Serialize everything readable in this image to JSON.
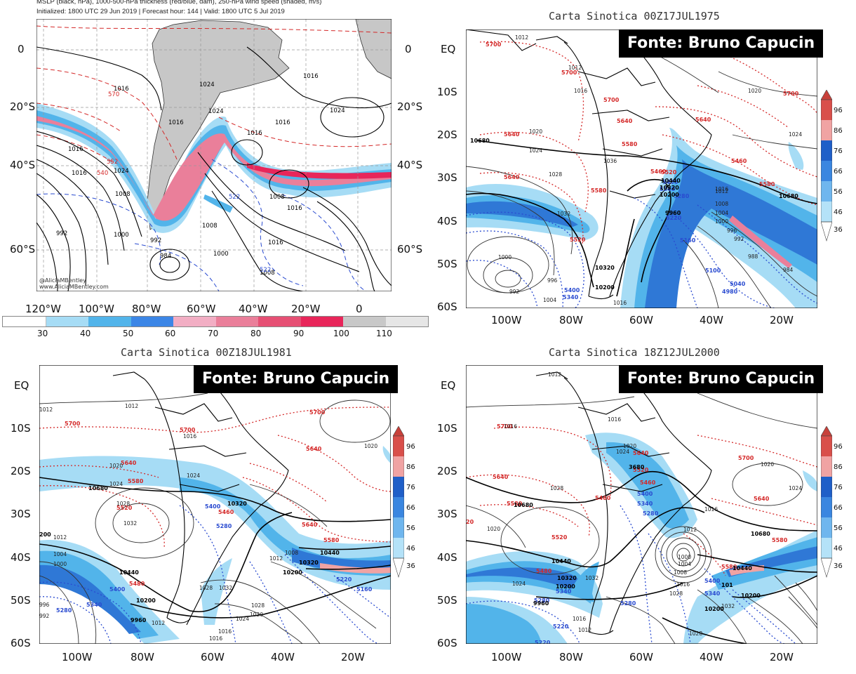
{
  "panel1": {
    "header": [
      "MSLP (black, hPa), 1000-500-hPa thickness (red/blue, dam), 250-hPa wind speed (shaded, m/s)",
      "Initialized: 1800 UTC 29 Jun 2019 | Forecast hour: 144 | Valid: 1800 UTC 5 Jul 2019"
    ],
    "y_ticks_left": [
      "0",
      "20°S",
      "40°S",
      "60°S"
    ],
    "y_ticks_right": [
      "0",
      "20°S",
      "40°S",
      "60°S"
    ],
    "x_ticks": [
      "120°W",
      "100°W",
      "80°W",
      "60°W",
      "40°W",
      "20°W",
      "0"
    ],
    "watermark": [
      "@AliciaMBentley",
      "www.AliciaMBentley.com"
    ],
    "colorbar": {
      "labels": [
        "30",
        "40",
        "50",
        "60",
        "70",
        "80",
        "90",
        "100",
        "110"
      ],
      "colors": [
        "#ffffff",
        "#a6dcf5",
        "#52b4ea",
        "#3c86e6",
        "#f2aec4",
        "#ea7f9a",
        "#e65074",
        "#e8265a",
        "#c8c8c8",
        "#e6e6e6"
      ]
    },
    "contour_labels": [
      "1016",
      "1024",
      "1016",
      "1016",
      "1016",
      "1024",
      "1016",
      "1024",
      "1016",
      "1024",
      "1016",
      "1008",
      "1008",
      "1008",
      "1000",
      "992",
      "984",
      "992",
      "1000",
      "1008",
      "1016",
      "1016",
      "522",
      "522",
      "540",
      "552",
      "570",
      "570"
    ]
  },
  "panel2": {
    "title": "Carta Sinotica 00Z17JUL1975",
    "fonte": "Fonte: Bruno Capucin",
    "y_ticks": [
      "EQ",
      "10S",
      "20S",
      "30S",
      "40S",
      "50S",
      "60S"
    ],
    "x_ticks": [
      "100W",
      "80W",
      "60W",
      "40W",
      "20W"
    ],
    "colorbar_labels": [
      "96",
      "86",
      "76",
      "66",
      "56",
      "46",
      "36"
    ],
    "labels_red": [
      "5700",
      "5700",
      "5700",
      "5640",
      "5640",
      "5640",
      "5580",
      "5580",
      "5580",
      "5520",
      "5520",
      "5460",
      "5460",
      "5640",
      "5700"
    ],
    "labels_blue": [
      "5400",
      "5340",
      "5280",
      "5220",
      "5160",
      "5100",
      "5040",
      "4980",
      "5400",
      "5340"
    ],
    "labels_black": [
      "1012",
      "1012",
      "1016",
      "1020",
      "1024",
      "1028",
      "1032",
      "1036",
      "1024",
      "1020",
      "1016",
      "1012",
      "1008",
      "1004",
      "1000",
      "996",
      "992",
      "988",
      "984",
      "1000",
      "992",
      "996",
      "1004",
      "1016",
      "10680",
      "10440",
      "10320",
      "10200",
      "9960",
      "10680",
      "10320",
      "10200"
    ]
  },
  "panel3": {
    "title": "Carta Sinotica 00Z18JUL1981",
    "fonte": "Fonte: Bruno Capucin",
    "y_ticks": [
      "EQ",
      "10S",
      "20S",
      "30S",
      "40S",
      "50S",
      "60S"
    ],
    "x_ticks": [
      "100W",
      "80W",
      "60W",
      "40W",
      "20W"
    ],
    "colorbar_labels": [
      "96",
      "86",
      "76",
      "66",
      "56",
      "46",
      "36"
    ],
    "labels_red": [
      "5700",
      "5700",
      "5700",
      "5640",
      "5640",
      "5580",
      "5520",
      "5460",
      "5580",
      "5640",
      "5480"
    ],
    "labels_blue": [
      "5400",
      "5340",
      "5280",
      "5280",
      "5220",
      "5160",
      "5400"
    ],
    "labels_black": [
      "1012",
      "1012",
      "1016",
      "1020",
      "1024",
      "1028",
      "1032",
      "1012",
      "1020",
      "1028",
      "1032",
      "1024",
      "1016",
      "1012",
      "1004",
      "1000",
      "996",
      "992",
      "1012",
      "1024",
      "1028",
      "1020",
      "1016",
      "1008",
      "10680",
      "10440",
      "10320",
      "10200",
      "9960",
      "10440",
      "10320",
      "10200",
      "200"
    ]
  },
  "panel4": {
    "title": "Carta Sinotica 18Z12JUL2000",
    "fonte": "Fonte: Bruno Capucin",
    "y_ticks": [
      "EQ",
      "10S",
      "20S",
      "30S",
      "40S",
      "50S",
      "60S"
    ],
    "x_ticks": [
      "100W",
      "80W",
      "60W",
      "40W",
      "20W"
    ],
    "colorbar_labels": [
      "96",
      "86",
      "76",
      "66",
      "56",
      "46",
      "36"
    ],
    "labels_red": [
      "5700",
      "5640",
      "5580",
      "5520",
      "5460",
      "5520",
      "5480",
      "5700",
      "5640",
      "5580",
      "5580",
      "5640",
      "5460",
      "20"
    ],
    "labels_blue": [
      "5400",
      "5340",
      "5280",
      "5280",
      "5220",
      "5340",
      "5400",
      "5280",
      "5340",
      "5220"
    ],
    "labels_black": [
      "1012",
      "1016",
      "1016",
      "1020",
      "1024",
      "1028",
      "1016",
      "1020",
      "1024",
      "1012",
      "1016",
      "1020",
      "1024",
      "1028",
      "1032",
      "1008",
      "1004",
      "1000",
      "1016",
      "1012",
      "1032",
      "1028",
      "10680",
      "10440",
      "10320",
      "10200",
      "9960",
      "3680",
      "10680",
      "10440",
      "10200",
      "10200",
      "101"
    ]
  }
}
